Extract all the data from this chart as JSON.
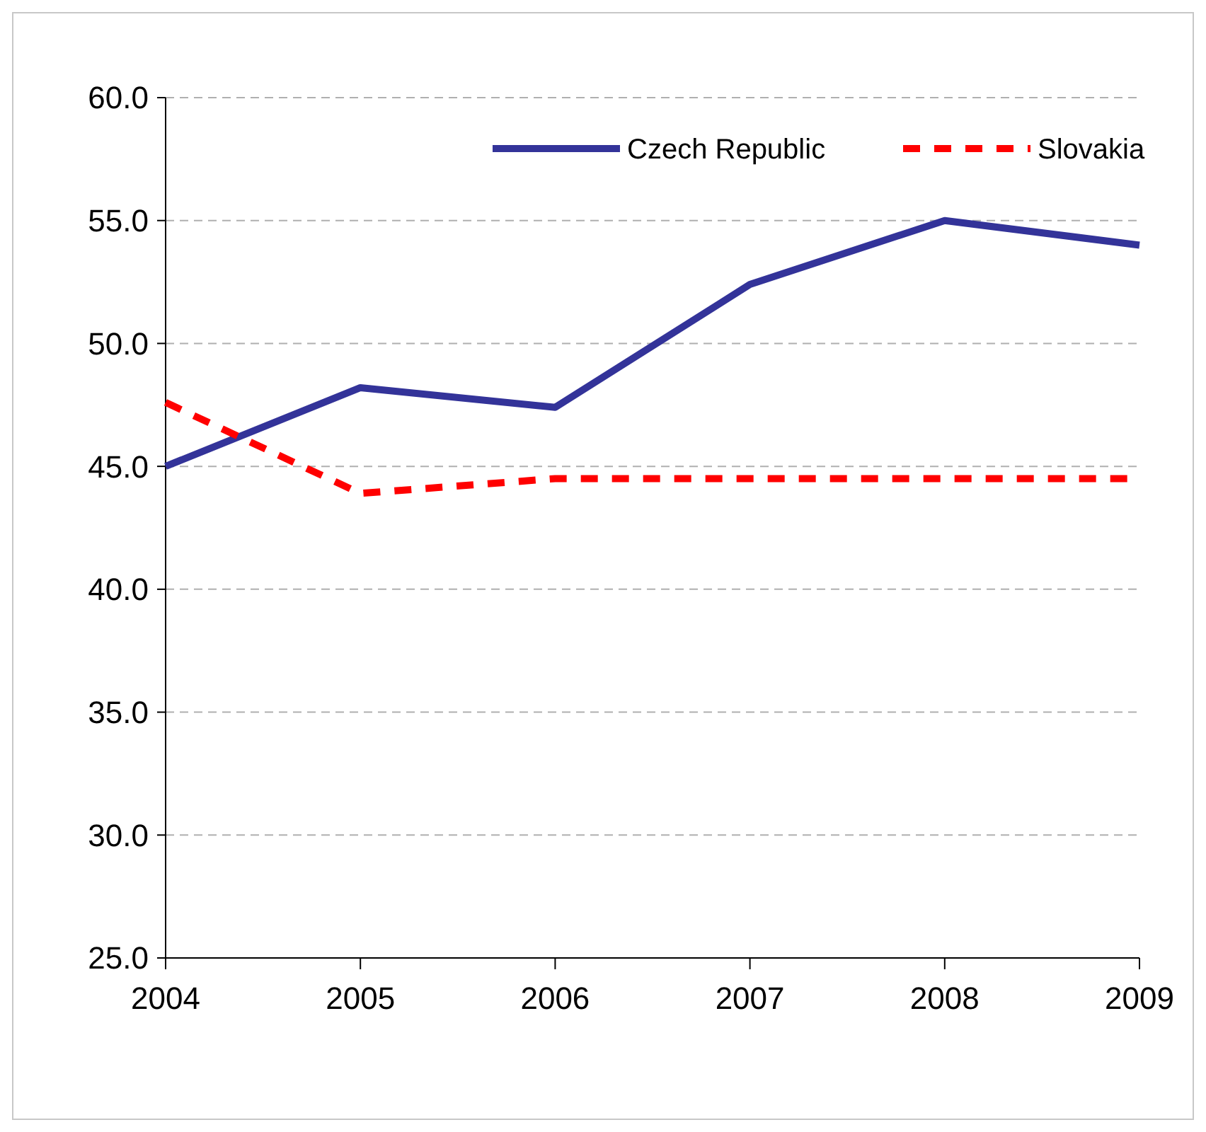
{
  "chart_data": {
    "type": "line",
    "categories": [
      "2004",
      "2005",
      "2006",
      "2007",
      "2008",
      "2009"
    ],
    "series": [
      {
        "name": "Czech Republic",
        "color": "#333399",
        "values": [
          45.0,
          48.2,
          47.4,
          52.4,
          55.0,
          54.0
        ],
        "line_style": "solid"
      },
      {
        "name": "Slovakia",
        "color": "#ff0000",
        "values": [
          47.6,
          43.9,
          44.5,
          44.5,
          44.5,
          44.5
        ],
        "line_style": "dashed"
      }
    ],
    "ylim": [
      25,
      60
    ],
    "yticks": [
      {
        "value": 25,
        "label": "25.0"
      },
      {
        "value": 30,
        "label": "30.0"
      },
      {
        "value": 35,
        "label": "35.0"
      },
      {
        "value": 40,
        "label": "40.0"
      },
      {
        "value": 45,
        "label": "45.0"
      },
      {
        "value": 50,
        "label": "50.0"
      },
      {
        "value": 55,
        "label": "55.0"
      },
      {
        "value": 60,
        "label": "60.0"
      }
    ],
    "grid": "y",
    "legend": "top right"
  }
}
